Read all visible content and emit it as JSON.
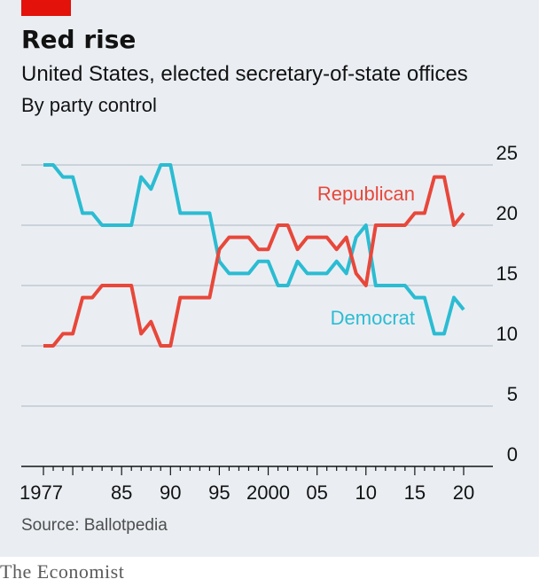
{
  "header": {
    "title": "Red rise",
    "subtitle": "United States, elected secretary-of-state offices",
    "note": "By party control"
  },
  "footer": {
    "source": "Source: Ballotpedia",
    "brand": "The Economist"
  },
  "colors": {
    "republican": "#e8473a",
    "democrat": "#2bbcd2",
    "background": "#eaeef3",
    "accent": "#e3120b"
  },
  "chart_data": {
    "type": "line",
    "title": "Red rise",
    "subtitle": "United States, elected secretary-of-state offices",
    "xlabel": "",
    "ylabel": "By party control",
    "xlim": [
      1977,
      2020
    ],
    "ylim": [
      0,
      25
    ],
    "grid": true,
    "legend": "inline labels",
    "x_tick_labels": [
      {
        "x": 1977,
        "label": "1977"
      },
      {
        "x": 1985,
        "label": "85"
      },
      {
        "x": 1990,
        "label": "90"
      },
      {
        "x": 1995,
        "label": "95"
      },
      {
        "x": 2000,
        "label": "2000"
      },
      {
        "x": 2005,
        "label": "05"
      },
      {
        "x": 2010,
        "label": "10"
      },
      {
        "x": 2015,
        "label": "15"
      },
      {
        "x": 2020,
        "label": "20"
      }
    ],
    "y_ticks": [
      0,
      5,
      10,
      15,
      20,
      25
    ],
    "x": [
      1977,
      1978,
      1979,
      1980,
      1981,
      1982,
      1983,
      1984,
      1985,
      1986,
      1987,
      1988,
      1989,
      1990,
      1991,
      1992,
      1993,
      1994,
      1995,
      1996,
      1997,
      1998,
      1999,
      2000,
      2001,
      2002,
      2003,
      2004,
      2005,
      2006,
      2007,
      2008,
      2009,
      2010,
      2011,
      2012,
      2013,
      2014,
      2015,
      2016,
      2017,
      2018,
      2019,
      2020
    ],
    "series": [
      {
        "name": "Republican",
        "color": "#e8473a",
        "values": [
          10,
          10,
          11,
          11,
          14,
          14,
          15,
          15,
          15,
          15,
          11,
          12,
          10,
          10,
          14,
          14,
          14,
          14,
          18,
          19,
          19,
          19,
          18,
          18,
          20,
          20,
          18,
          19,
          19,
          19,
          18,
          19,
          16,
          15,
          20,
          20,
          20,
          20,
          21,
          21,
          24,
          24,
          20,
          21
        ]
      },
      {
        "name": "Democrat",
        "color": "#2bbcd2",
        "values": [
          25,
          25,
          24,
          24,
          21,
          21,
          20,
          20,
          20,
          20,
          24,
          23,
          25,
          25,
          21,
          21,
          21,
          21,
          17,
          16,
          16,
          16,
          17,
          17,
          15,
          15,
          17,
          16,
          16,
          16,
          17,
          16,
          19,
          20,
          15,
          15,
          15,
          15,
          14,
          14,
          11,
          11,
          14,
          13
        ]
      }
    ]
  }
}
